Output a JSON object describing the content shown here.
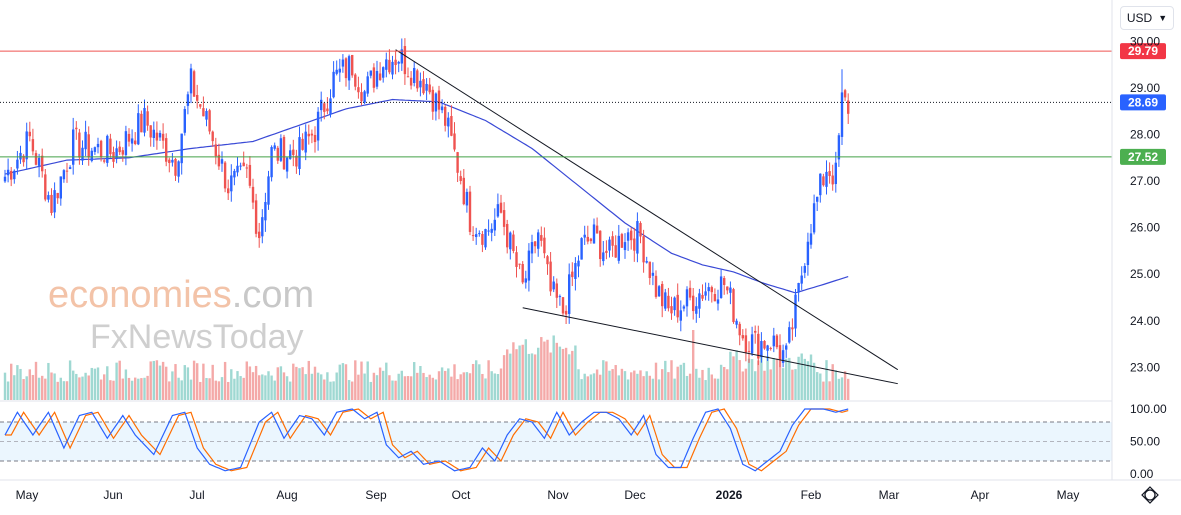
{
  "currency": {
    "label": "USD",
    "icon": "chevron-down-icon"
  },
  "watermark": {
    "line1a": "economies",
    "line1b": ".com",
    "line2": "FxNewsToday"
  },
  "colors": {
    "up": "#26a69a",
    "down": "#ef5350",
    "ma": "#3949d6",
    "resistance": "#ef5350",
    "support": "#43a047",
    "last": "#2962ff",
    "stochK": "#2962ff",
    "stochD": "#ff6d00"
  },
  "chart_data": [
    {
      "type": "candlestick",
      "title": "",
      "x_axis": {
        "labels": [
          "May",
          "Jun",
          "Jul",
          "Aug",
          "Sep",
          "Oct",
          "Nov",
          "Dec",
          "2026",
          "Feb",
          "Mar",
          "Apr",
          "May"
        ]
      },
      "y_axis": {
        "ticks": [
          "30.00",
          "29.00",
          "28.00",
          "27.00",
          "26.00",
          "25.00",
          "24.00",
          "23.00"
        ],
        "range": [
          22.3,
          30.2
        ]
      },
      "price_lines": [
        {
          "name": "resistance",
          "value": 29.79,
          "label": "29.79"
        },
        {
          "name": "last-price",
          "value": 28.69,
          "label": "28.69"
        },
        {
          "name": "support",
          "value": 27.52,
          "label": "27.52"
        }
      ],
      "trendlines": [
        {
          "name": "upper-wedge",
          "from": [
            126,
            29.82
          ],
          "to": [
            288,
            22.95
          ]
        },
        {
          "name": "lower-wedge",
          "from": [
            167,
            24.28
          ],
          "to": [
            288,
            22.65
          ]
        }
      ],
      "moving_average_anchors": [
        [
          0,
          27.15
        ],
        [
          20,
          27.45
        ],
        [
          40,
          27.5
        ],
        [
          60,
          27.7
        ],
        [
          80,
          27.85
        ],
        [
          95,
          28.2
        ],
        [
          110,
          28.55
        ],
        [
          125,
          28.75
        ],
        [
          140,
          28.7
        ],
        [
          155,
          28.3
        ],
        [
          170,
          27.7
        ],
        [
          185,
          26.9
        ],
        [
          200,
          26.1
        ],
        [
          215,
          25.45
        ],
        [
          225,
          25.2
        ],
        [
          235,
          25.05
        ],
        [
          245,
          24.8
        ],
        [
          255,
          24.6
        ],
        [
          265,
          24.8
        ],
        [
          272,
          24.95
        ]
      ],
      "price_anchors": [
        [
          0,
          27.1
        ],
        [
          8,
          27.9
        ],
        [
          15,
          26.5
        ],
        [
          22,
          27.8
        ],
        [
          35,
          27.6
        ],
        [
          45,
          28.3
        ],
        [
          55,
          27.4
        ],
        [
          60,
          29.1
        ],
        [
          66,
          28.1
        ],
        [
          72,
          26.9
        ],
        [
          78,
          27.1
        ],
        [
          82,
          25.9
        ],
        [
          86,
          27.6
        ],
        [
          95,
          27.6
        ],
        [
          100,
          28.1
        ],
        [
          106,
          29.2
        ],
        [
          112,
          29.5
        ],
        [
          116,
          28.9
        ],
        [
          122,
          29.6
        ],
        [
          127,
          29.7
        ],
        [
          131,
          29.4
        ],
        [
          136,
          29.1
        ],
        [
          142,
          28.3
        ],
        [
          147,
          27.1
        ],
        [
          150,
          26.2
        ],
        [
          155,
          25.9
        ],
        [
          160,
          26.3
        ],
        [
          167,
          24.7
        ],
        [
          172,
          25.9
        ],
        [
          176,
          24.6
        ],
        [
          180,
          24.2
        ],
        [
          186,
          25.6
        ],
        [
          190,
          25.8
        ],
        [
          195,
          25.4
        ],
        [
          200,
          25.9
        ],
        [
          205,
          25.8
        ],
        [
          210,
          24.7
        ],
        [
          214,
          24.2
        ],
        [
          220,
          24.4
        ],
        [
          226,
          24.7
        ],
        [
          232,
          24.8
        ],
        [
          238,
          23.7
        ],
        [
          242,
          23.5
        ],
        [
          247,
          23.6
        ],
        [
          252,
          23.2
        ],
        [
          256,
          24.6
        ],
        [
          259,
          25.9
        ],
        [
          262,
          26.6
        ],
        [
          265,
          27.3
        ],
        [
          268,
          27.1
        ],
        [
          270,
          28.7
        ],
        [
          272,
          28.6
        ]
      ],
      "volume_range": [
        0,
        100
      ],
      "stochastic": {
        "ticks": [
          "100.00",
          "50.00",
          "0.00"
        ],
        "bands": [
          80,
          20
        ],
        "k_anchors": [
          [
            0,
            60
          ],
          [
            4,
            95
          ],
          [
            9,
            60
          ],
          [
            14,
            95
          ],
          [
            19,
            40
          ],
          [
            24,
            90
          ],
          [
            28,
            95
          ],
          [
            33,
            55
          ],
          [
            38,
            90
          ],
          [
            42,
            60
          ],
          [
            48,
            30
          ],
          [
            54,
            90
          ],
          [
            58,
            95
          ],
          [
            62,
            40
          ],
          [
            66,
            15
          ],
          [
            71,
            5
          ],
          [
            76,
            10
          ],
          [
            82,
            80
          ],
          [
            86,
            95
          ],
          [
            90,
            55
          ],
          [
            95,
            90
          ],
          [
            99,
            85
          ],
          [
            103,
            60
          ],
          [
            107,
            95
          ],
          [
            112,
            100
          ],
          [
            116,
            85
          ],
          [
            120,
            95
          ],
          [
            123,
            45
          ],
          [
            127,
            25
          ],
          [
            131,
            35
          ],
          [
            135,
            15
          ],
          [
            140,
            20
          ],
          [
            145,
            5
          ],
          [
            150,
            10
          ],
          [
            154,
            40
          ],
          [
            158,
            20
          ],
          [
            162,
            60
          ],
          [
            166,
            85
          ],
          [
            170,
            80
          ],
          [
            174,
            55
          ],
          [
            178,
            95
          ],
          [
            182,
            60
          ],
          [
            186,
            80
          ],
          [
            190,
            95
          ],
          [
            194,
            95
          ],
          [
            198,
            85
          ],
          [
            202,
            60
          ],
          [
            206,
            90
          ],
          [
            210,
            30
          ],
          [
            214,
            10
          ],
          [
            218,
            10
          ],
          [
            222,
            55
          ],
          [
            226,
            95
          ],
          [
            230,
            100
          ],
          [
            234,
            70
          ],
          [
            238,
            15
          ],
          [
            242,
            5
          ],
          [
            246,
            20
          ],
          [
            250,
            35
          ],
          [
            254,
            75
          ],
          [
            258,
            100
          ],
          [
            264,
            100
          ],
          [
            268,
            95
          ],
          [
            272,
            100
          ]
        ]
      }
    }
  ]
}
